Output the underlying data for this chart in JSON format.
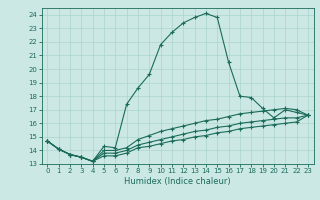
{
  "xlabel": "Humidex (Indice chaleur)",
  "background_color": "#cce8e4",
  "grid_color": "#aad4cc",
  "line_color": "#1a6b5a",
  "xlim": [
    -0.5,
    23.5
  ],
  "ylim": [
    13.0,
    24.5
  ],
  "yticks": [
    13,
    14,
    15,
    16,
    17,
    18,
    19,
    20,
    21,
    22,
    23,
    24
  ],
  "xticks": [
    0,
    1,
    2,
    3,
    4,
    5,
    6,
    7,
    8,
    9,
    10,
    11,
    12,
    13,
    14,
    15,
    16,
    17,
    18,
    19,
    20,
    21,
    22,
    23
  ],
  "series": [
    {
      "x": [
        0,
        1,
        2,
        3,
        4,
        5,
        6,
        7,
        8,
        9,
        10,
        11,
        12,
        13,
        14,
        15,
        16,
        17,
        18,
        19,
        20,
        21,
        22,
        23
      ],
      "y": [
        14.7,
        14.1,
        13.7,
        13.5,
        13.2,
        14.3,
        14.2,
        17.4,
        18.6,
        19.6,
        21.8,
        22.7,
        23.4,
        23.8,
        24.1,
        23.8,
        20.5,
        18.0,
        17.9,
        17.1,
        16.4,
        17.0,
        16.8,
        16.6
      ]
    },
    {
      "x": [
        0,
        1,
        2,
        3,
        4,
        5,
        6,
        7,
        8,
        9,
        10,
        11,
        12,
        13,
        14,
        15,
        16,
        17,
        18,
        19,
        20,
        21,
        22,
        23
      ],
      "y": [
        14.7,
        14.1,
        13.7,
        13.5,
        13.2,
        14.0,
        14.0,
        14.2,
        14.8,
        15.1,
        15.4,
        15.6,
        15.8,
        16.0,
        16.2,
        16.3,
        16.5,
        16.7,
        16.8,
        16.9,
        17.0,
        17.1,
        17.0,
        16.6
      ]
    },
    {
      "x": [
        0,
        1,
        2,
        3,
        4,
        5,
        6,
        7,
        8,
        9,
        10,
        11,
        12,
        13,
        14,
        15,
        16,
        17,
        18,
        19,
        20,
        21,
        22,
        23
      ],
      "y": [
        14.7,
        14.1,
        13.7,
        13.5,
        13.2,
        13.8,
        13.8,
        14.0,
        14.4,
        14.6,
        14.8,
        15.0,
        15.2,
        15.4,
        15.5,
        15.7,
        15.8,
        16.0,
        16.1,
        16.2,
        16.3,
        16.4,
        16.4,
        16.6
      ]
    },
    {
      "x": [
        0,
        1,
        2,
        3,
        4,
        5,
        6,
        7,
        8,
        9,
        10,
        11,
        12,
        13,
        14,
        15,
        16,
        17,
        18,
        19,
        20,
        21,
        22,
        23
      ],
      "y": [
        14.7,
        14.1,
        13.7,
        13.5,
        13.2,
        13.6,
        13.6,
        13.8,
        14.2,
        14.3,
        14.5,
        14.7,
        14.8,
        15.0,
        15.1,
        15.3,
        15.4,
        15.6,
        15.7,
        15.8,
        15.9,
        16.0,
        16.1,
        16.6
      ]
    }
  ]
}
